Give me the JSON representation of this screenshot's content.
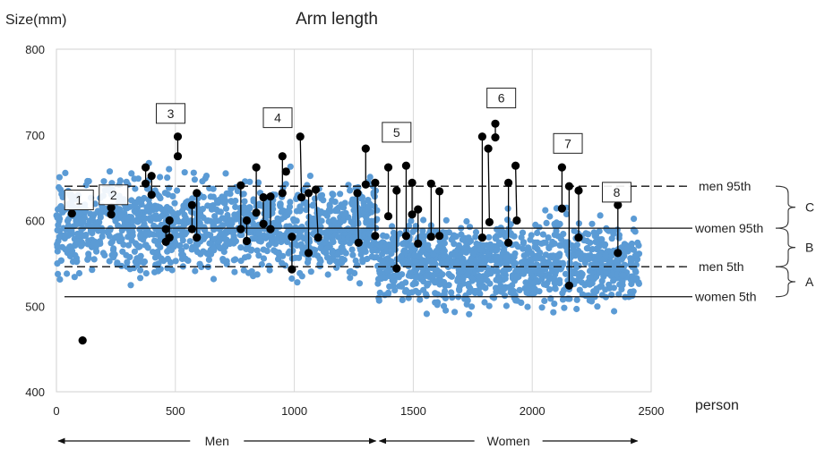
{
  "chart_data": {
    "type": "scatter",
    "title": "Arm length",
    "ylabel": "Size(mm)",
    "xlabel": "person",
    "xlim": [
      0,
      2500
    ],
    "ylim": [
      400,
      800
    ],
    "x_ticks": [
      0,
      500,
      1000,
      1500,
      2000,
      2500
    ],
    "y_ticks": [
      400,
      500,
      600,
      700,
      800
    ],
    "grid": "vertical",
    "colors": {
      "scatter": "#5b9bd5",
      "marker": "#000000",
      "line": "#000000"
    },
    "scatter_groups": [
      {
        "x_range": [
          0,
          1350
        ],
        "center": 592,
        "spread": 26,
        "count": 1250
      },
      {
        "x_range": [
          1350,
          2450
        ],
        "center": 550,
        "spread": 23,
        "count": 1100
      }
    ],
    "reference_lines": [
      {
        "label": "men 95th",
        "value": 640,
        "dashed": true
      },
      {
        "label": "women 95th",
        "value": 591,
        "dashed": false
      },
      {
        "label": "men 5th",
        "value": 546,
        "dashed": true
      },
      {
        "label": "women 5th",
        "value": 511,
        "dashed": false
      }
    ],
    "brackets": [
      {
        "label": "A",
        "from": 511,
        "to": 546
      },
      {
        "label": "B",
        "from": 546,
        "to": 591
      },
      {
        "label": "C",
        "from": 591,
        "to": 640
      }
    ],
    "group_labels": [
      {
        "label": "Men",
        "from": 0,
        "to": 1350
      },
      {
        "label": "Women",
        "from": 1350,
        "to": 2450
      }
    ],
    "highlight_points": [
      [
        65,
        608
      ],
      [
        110,
        460
      ],
      [
        230,
        615
      ],
      [
        230,
        607
      ],
      [
        375,
        662
      ],
      [
        375,
        643
      ],
      [
        400,
        652
      ],
      [
        400,
        630
      ],
      [
        460,
        590
      ],
      [
        460,
        575
      ],
      [
        475,
        600
      ],
      [
        475,
        580
      ],
      [
        510,
        698
      ],
      [
        510,
        675
      ],
      [
        570,
        618
      ],
      [
        570,
        590
      ],
      [
        590,
        632
      ],
      [
        590,
        580
      ],
      [
        775,
        641
      ],
      [
        775,
        590
      ],
      [
        800,
        600
      ],
      [
        800,
        576
      ],
      [
        840,
        662
      ],
      [
        840,
        609
      ],
      [
        870,
        627
      ],
      [
        870,
        596
      ],
      [
        900,
        628
      ],
      [
        900,
        590
      ],
      [
        950,
        675
      ],
      [
        950,
        632
      ],
      [
        965,
        657
      ],
      [
        990,
        581
      ],
      [
        990,
        543
      ],
      [
        1025,
        698
      ],
      [
        1030,
        627
      ],
      [
        1060,
        632
      ],
      [
        1060,
        562
      ],
      [
        1090,
        636
      ],
      [
        1100,
        580
      ],
      [
        1265,
        632
      ],
      [
        1270,
        574
      ],
      [
        1300,
        684
      ],
      [
        1300,
        642
      ],
      [
        1340,
        644
      ],
      [
        1340,
        582
      ],
      [
        1395,
        662
      ],
      [
        1395,
        605
      ],
      [
        1430,
        635
      ],
      [
        1430,
        544
      ],
      [
        1470,
        664
      ],
      [
        1470,
        582
      ],
      [
        1495,
        644
      ],
      [
        1495,
        607
      ],
      [
        1520,
        613
      ],
      [
        1520,
        573
      ],
      [
        1575,
        643
      ],
      [
        1575,
        581
      ],
      [
        1610,
        634
      ],
      [
        1610,
        582
      ],
      [
        1790,
        698
      ],
      [
        1790,
        580
      ],
      [
        1815,
        684
      ],
      [
        1820,
        598
      ],
      [
        1845,
        713
      ],
      [
        1845,
        697
      ],
      [
        1900,
        644
      ],
      [
        1900,
        574
      ],
      [
        1930,
        664
      ],
      [
        1935,
        600
      ],
      [
        2125,
        662
      ],
      [
        2125,
        614
      ],
      [
        2155,
        640
      ],
      [
        2155,
        524
      ],
      [
        2195,
        635
      ],
      [
        2195,
        580
      ],
      [
        2360,
        618
      ],
      [
        2360,
        562
      ]
    ],
    "highlight_lines": [
      [
        375,
        662,
        375,
        643
      ],
      [
        400,
        652,
        400,
        630
      ],
      [
        460,
        590,
        460,
        575
      ],
      [
        475,
        600,
        475,
        580
      ],
      [
        510,
        698,
        510,
        675
      ],
      [
        570,
        618,
        570,
        590
      ],
      [
        590,
        632,
        590,
        580
      ],
      [
        775,
        641,
        775,
        590
      ],
      [
        800,
        600,
        800,
        576
      ],
      [
        840,
        662,
        840,
        609
      ],
      [
        870,
        627,
        870,
        596
      ],
      [
        900,
        628,
        900,
        590
      ],
      [
        950,
        675,
        950,
        632
      ],
      [
        990,
        581,
        990,
        543
      ],
      [
        1025,
        698,
        1030,
        627
      ],
      [
        1060,
        632,
        1060,
        562
      ],
      [
        1090,
        636,
        1100,
        580
      ],
      [
        1265,
        632,
        1270,
        574
      ],
      [
        1300,
        684,
        1300,
        642
      ],
      [
        1340,
        644,
        1340,
        582
      ],
      [
        1395,
        662,
        1395,
        605
      ],
      [
        1430,
        635,
        1430,
        544
      ],
      [
        1470,
        664,
        1470,
        582
      ],
      [
        1495,
        644,
        1495,
        607
      ],
      [
        1520,
        613,
        1520,
        573
      ],
      [
        1575,
        643,
        1575,
        581
      ],
      [
        1610,
        634,
        1610,
        582
      ],
      [
        1790,
        698,
        1790,
        580
      ],
      [
        1815,
        684,
        1820,
        598
      ],
      [
        1845,
        713,
        1845,
        697
      ],
      [
        1900,
        644,
        1900,
        574
      ],
      [
        1930,
        664,
        1935,
        600
      ],
      [
        2125,
        662,
        2125,
        614
      ],
      [
        2155,
        640,
        2155,
        524
      ],
      [
        2195,
        635,
        2195,
        580
      ],
      [
        2360,
        618,
        2360,
        562
      ]
    ],
    "numbered_boxes": [
      {
        "label": "1",
        "x": 95,
        "y": 624
      },
      {
        "label": "2",
        "x": 240,
        "y": 630
      },
      {
        "label": "3",
        "x": 480,
        "y": 725
      },
      {
        "label": "4",
        "x": 930,
        "y": 720
      },
      {
        "label": "5",
        "x": 1430,
        "y": 703
      },
      {
        "label": "6",
        "x": 1870,
        "y": 743
      },
      {
        "label": "7",
        "x": 2150,
        "y": 690
      },
      {
        "label": "8",
        "x": 2355,
        "y": 633
      }
    ]
  }
}
